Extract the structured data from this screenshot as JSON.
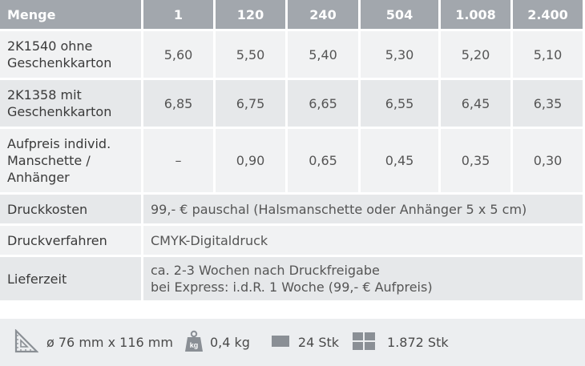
{
  "table": {
    "header": {
      "label": "Menge",
      "quantities": [
        "1",
        "120",
        "240",
        "504",
        "1.008",
        "2.400"
      ]
    },
    "rows": [
      {
        "label_lines": [
          "2K1540 ohne",
          "Geschenkkarton"
        ],
        "values": [
          "5,60",
          "5,50",
          "5,40",
          "5,30",
          "5,20",
          "5,10"
        ]
      },
      {
        "label_lines": [
          "2K1358 mit",
          "Geschenkkarton"
        ],
        "values": [
          "6,85",
          "6,75",
          "6,65",
          "6,55",
          "6,45",
          "6,35"
        ]
      },
      {
        "label_lines": [
          "Aufpreis individ.",
          "Manschette /",
          "Anhänger"
        ],
        "values": [
          "–",
          "0,90",
          "0,65",
          "0,45",
          "0,35",
          "0,30"
        ]
      }
    ],
    "info_rows": [
      {
        "label": "Druckkosten",
        "text_lines": [
          "99,- € pauschal (Halsmanschette oder Anhänger 5 x 5 cm)"
        ]
      },
      {
        "label": "Druckverfahren",
        "text_lines": [
          "CMYK-Digitaldruck"
        ]
      },
      {
        "label": "Lieferzeit",
        "text_lines": [
          "ca. 2-3 Wochen nach Druckfreigabe",
          "bei Express:  i.d.R. 1 Woche (99,- € Aufpreis)"
        ]
      }
    ]
  },
  "footer": {
    "dimensions": "ø 76 mm x 116 mm",
    "weight": "0,4 kg",
    "weight_icon_text": "kg",
    "carton": "24 Stk",
    "pallet": "1.872 Stk",
    "icons": [
      "set-square-icon",
      "weight-icon",
      "carton-icon",
      "pallet-icon"
    ]
  }
}
